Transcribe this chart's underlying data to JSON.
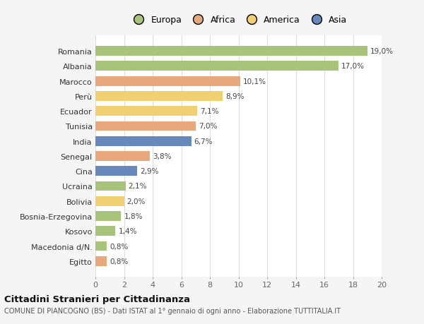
{
  "categories": [
    "Romania",
    "Albania",
    "Marocco",
    "Perù",
    "Ecuador",
    "Tunisia",
    "India",
    "Senegal",
    "Cina",
    "Ucraina",
    "Bolivia",
    "Bosnia-Erzegovina",
    "Kosovo",
    "Macedonia d/N.",
    "Egitto"
  ],
  "values": [
    19.0,
    17.0,
    10.1,
    8.9,
    7.1,
    7.0,
    6.7,
    3.8,
    2.9,
    2.1,
    2.0,
    1.8,
    1.4,
    0.8,
    0.8
  ],
  "labels": [
    "19,0%",
    "17,0%",
    "10,1%",
    "8,9%",
    "7,1%",
    "7,0%",
    "6,7%",
    "3,8%",
    "2,9%",
    "2,1%",
    "2,0%",
    "1,8%",
    "1,4%",
    "0,8%",
    "0,8%"
  ],
  "continents": [
    "Europa",
    "Europa",
    "Africa",
    "America",
    "America",
    "Africa",
    "Asia",
    "Africa",
    "Asia",
    "Europa",
    "America",
    "Europa",
    "Europa",
    "Europa",
    "Africa"
  ],
  "colors": {
    "Europa": "#a8c47a",
    "Africa": "#e8a87c",
    "America": "#f0d070",
    "Asia": "#6688bb"
  },
  "legend_order": [
    "Europa",
    "Africa",
    "America",
    "Asia"
  ],
  "legend_colors": [
    "#a8c47a",
    "#e8a87c",
    "#f0d070",
    "#6688bb"
  ],
  "title": "Cittadini Stranieri per Cittadinanza",
  "subtitle": "COMUNE DI PIANCOGNO (BS) - Dati ISTAT al 1° gennaio di ogni anno - Elaborazione TUTTITALIA.IT",
  "xlim": [
    0,
    20
  ],
  "xticks": [
    0,
    2,
    4,
    6,
    8,
    10,
    12,
    14,
    16,
    18,
    20
  ],
  "bg_color": "#f5f5f5",
  "plot_bg_color": "#ffffff",
  "grid_color": "#dddddd"
}
